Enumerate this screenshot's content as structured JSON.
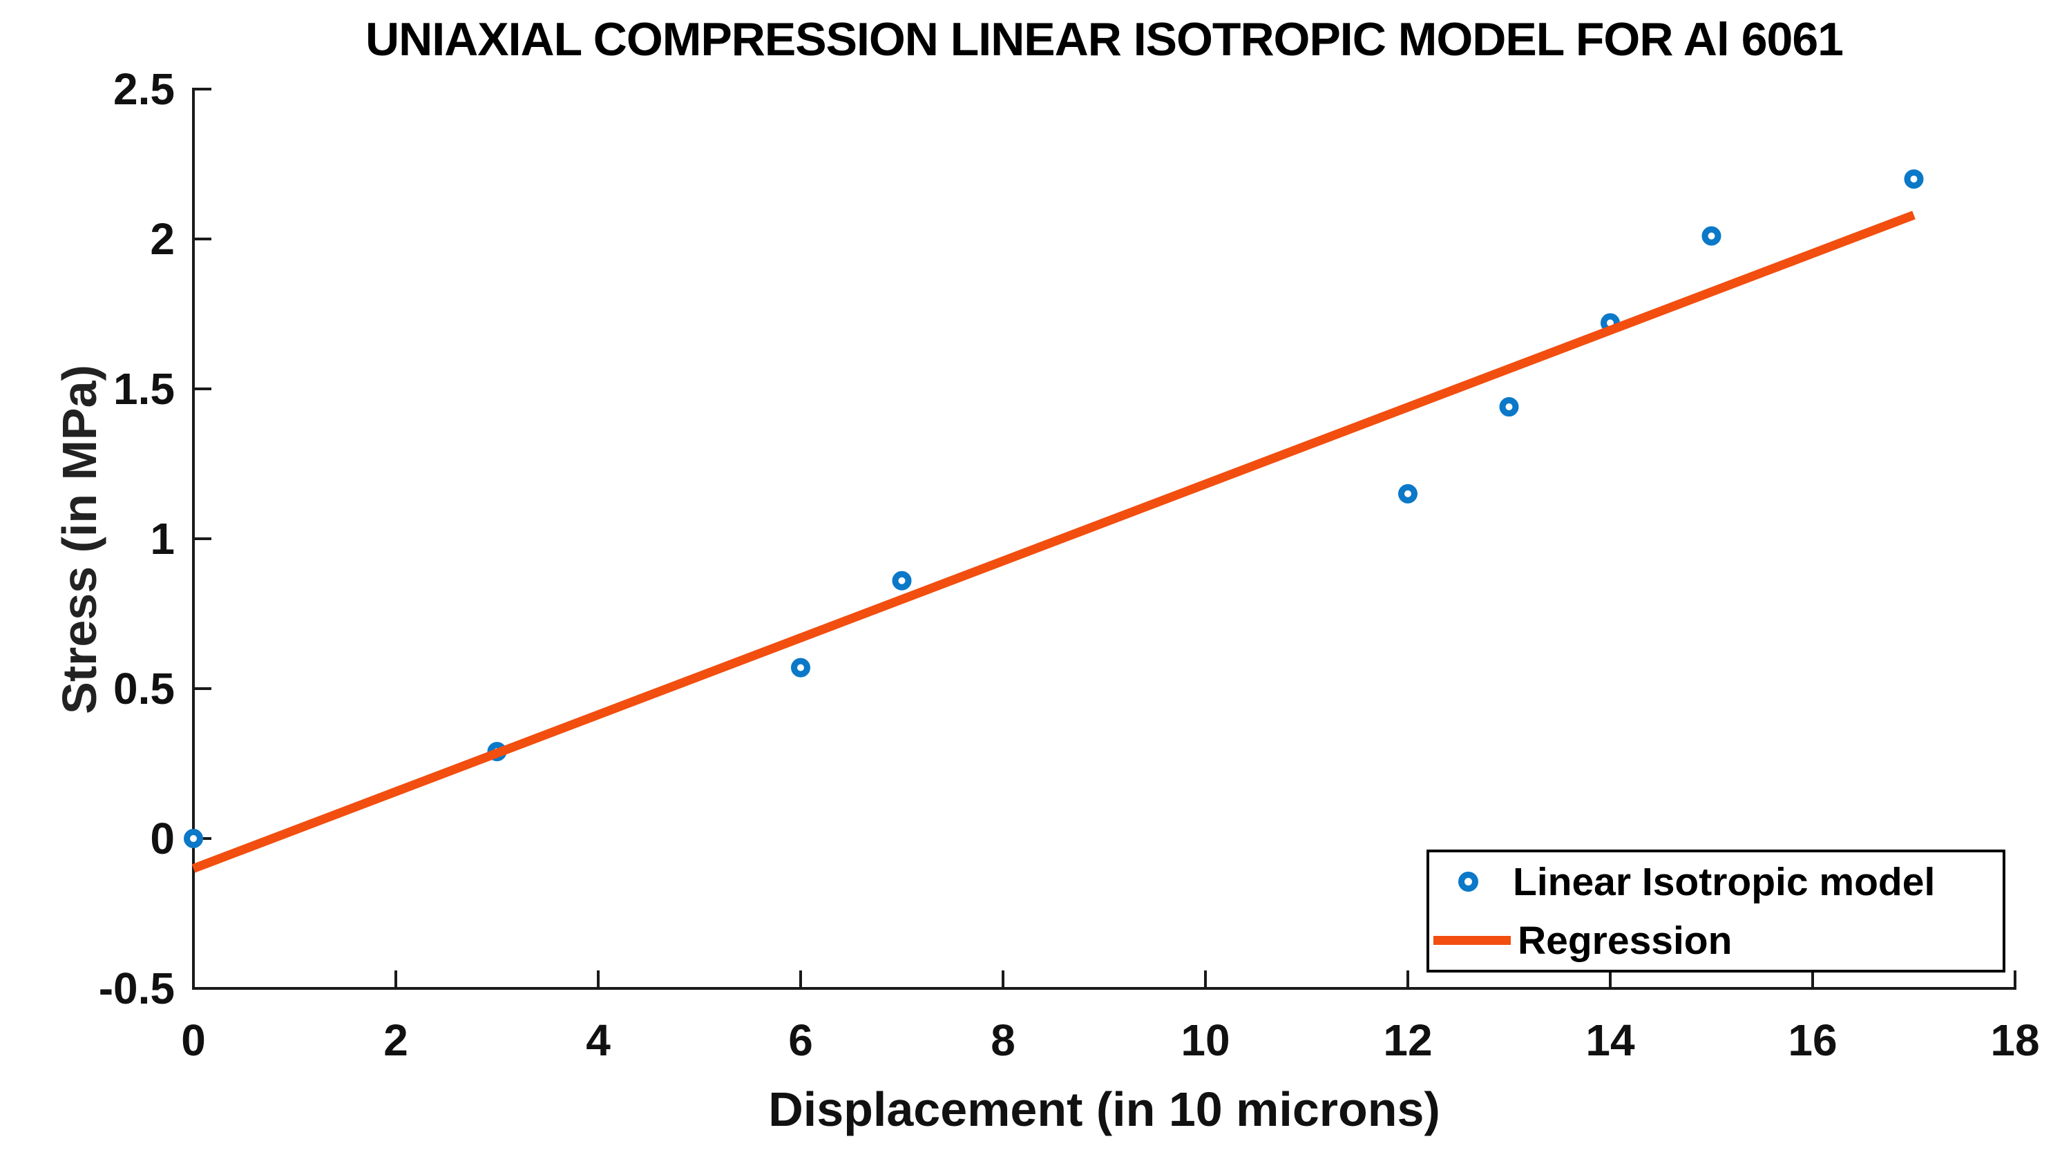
{
  "figure": {
    "background": "#ffffff",
    "text_color": "#111111",
    "axis_color": "#1a1a1a"
  },
  "chart_data": {
    "type": "scatter",
    "title": "UNIAXIAL COMPRESSION LINEAR ISOTROPIC MODEL FOR Al 6061",
    "xlabel": "Displacement (in 10 microns)",
    "ylabel": "Stress (in MPa)",
    "xlim": [
      0,
      18
    ],
    "ylim": [
      -0.5,
      2.5
    ],
    "grid": false,
    "xticks": {
      "values": [
        0,
        2,
        4,
        6,
        8,
        10,
        12,
        14,
        16,
        18
      ],
      "labels": [
        "0",
        "2",
        "4",
        "6",
        "8",
        "10",
        "12",
        "14",
        "16",
        "18"
      ]
    },
    "yticks": {
      "values": [
        -0.5,
        0,
        0.5,
        1,
        1.5,
        2,
        2.5
      ],
      "labels": [
        "-0.5",
        "0",
        "0.5",
        "1",
        "1.5",
        "2",
        "2.5"
      ]
    },
    "series": [
      {
        "name": "Linear Isotropic model",
        "type": "scatter",
        "marker": "open-circle",
        "color": "#0b78c8",
        "x": [
          0,
          3,
          6,
          7,
          12,
          13,
          14,
          15,
          17
        ],
        "y": [
          0,
          0.29,
          0.57,
          0.86,
          1.15,
          1.44,
          1.72,
          2.01,
          2.2
        ]
      },
      {
        "name": "Regression",
        "type": "line",
        "color": "#f24e0f",
        "x": [
          0,
          17
        ],
        "y": [
          -0.1,
          2.08
        ]
      }
    ],
    "legend": {
      "position": "southeast",
      "entries": [
        {
          "label": "Linear Isotropic model",
          "swatch": "circle-marker"
        },
        {
          "label": "Regression",
          "swatch": "line"
        }
      ]
    }
  }
}
